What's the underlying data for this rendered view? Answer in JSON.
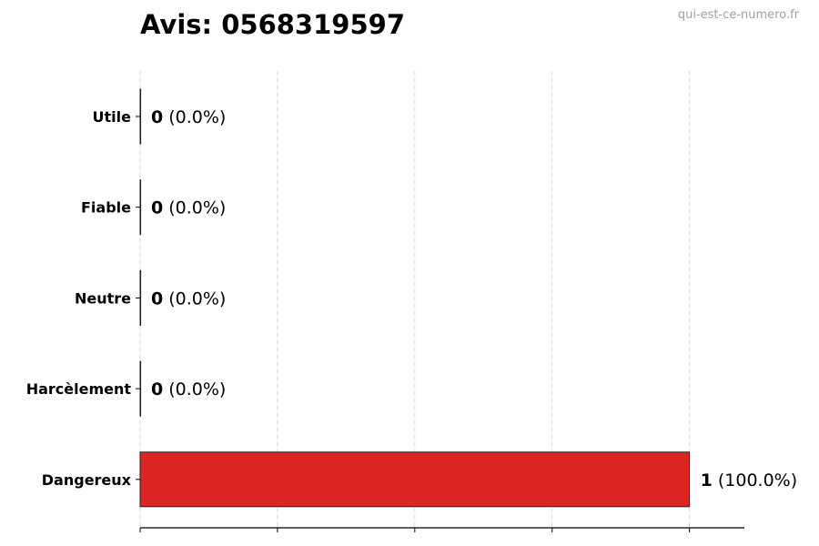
{
  "chart_data": {
    "type": "bar",
    "orientation": "horizontal",
    "title": "Avis: 0568319597",
    "watermark": "qui-est-ce-numero.fr",
    "categories": [
      "Utile",
      "Fiable",
      "Neutre",
      "Harcèlement",
      "Dangereux"
    ],
    "values": [
      0,
      0,
      0,
      0,
      1
    ],
    "value_labels": [
      "0",
      "0",
      "0",
      "0",
      "1"
    ],
    "percent_labels": [
      "(0.0%)",
      "(0.0%)",
      "(0.0%)",
      "(0.0%)",
      "(100.0%)"
    ],
    "colors": [
      "#dc2626",
      "#dc2626",
      "#dc2626",
      "#dc2626",
      "#dc2626"
    ],
    "xlabel": "",
    "ylabel": "",
    "xlim": [
      0,
      1.1
    ],
    "xticks": [
      0,
      0.25,
      0.5,
      0.75,
      1
    ],
    "grid": "x, dashed",
    "legend": "none"
  }
}
